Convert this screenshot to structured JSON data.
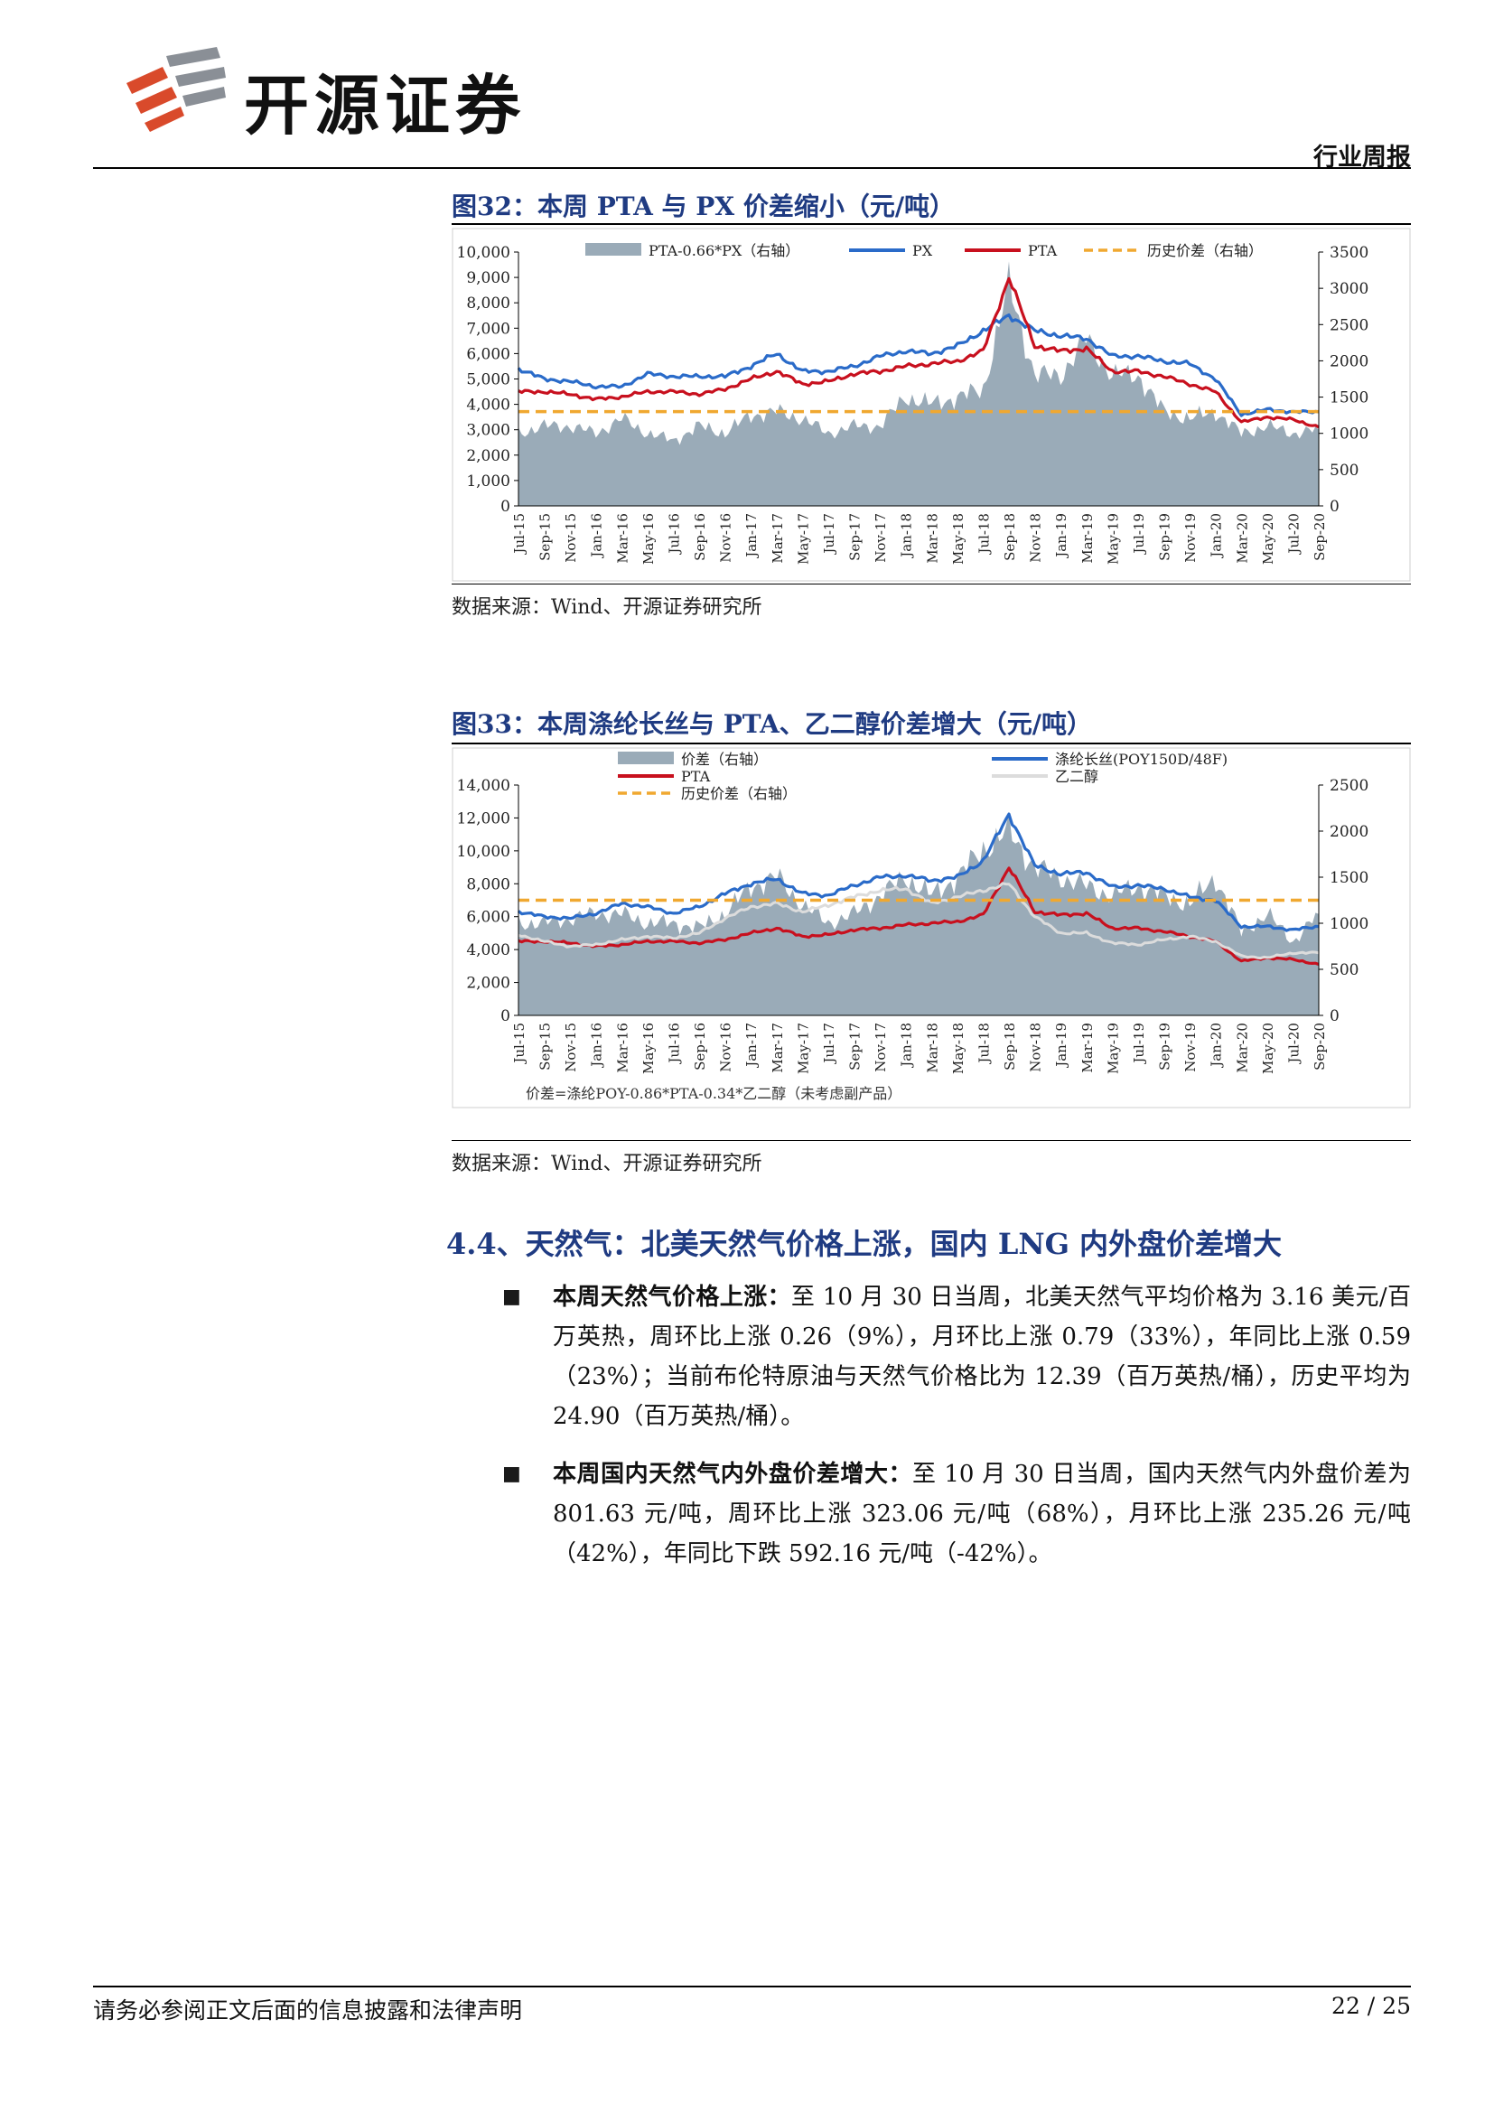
{
  "header": {
    "company_name": "开源证券",
    "report_type": "行业周报"
  },
  "figure32": {
    "title": "图32：本周 PTA 与 PX 价差缩小（元/吨）",
    "source": "数据来源：Wind、开源证券研究所",
    "colors": {
      "spread": "#9aabb8",
      "px": "#2a6bc9",
      "pta": "#c8101e",
      "hist": "#f0a830"
    },
    "chart_data": {
      "type": "area+line",
      "legend": [
        "PTA-0.66*PX（右轴）",
        "PX",
        "PTA",
        "历史价差（右轴）"
      ],
      "legend_placement": "top",
      "x_ticks": [
        "Jul-15",
        "Sep-15",
        "Nov-15",
        "Jan-16",
        "Mar-16",
        "May-16",
        "Jul-16",
        "Sep-16",
        "Nov-16",
        "Jan-17",
        "Mar-17",
        "May-17",
        "Jul-17",
        "Sep-17",
        "Nov-17",
        "Jan-18",
        "Mar-18",
        "May-18",
        "Jul-18",
        "Sep-18",
        "Nov-18",
        "Jan-19",
        "Mar-19",
        "May-19",
        "Jul-19",
        "Sep-19",
        "Nov-19",
        "Jan-20",
        "Mar-20",
        "May-20",
        "Jul-20",
        "Sep-20"
      ],
      "y_left": {
        "ticks": [
          "10,000",
          "9,000",
          "8,000",
          "7,000",
          "6,000",
          "5,000",
          "4,000",
          "3,000",
          "2,000",
          "1,000",
          "0"
        ],
        "range": [
          0,
          10000
        ]
      },
      "y_right": {
        "ticks": [
          "3500",
          "3000",
          "2500",
          "2000",
          "1500",
          "1000",
          "500",
          "0"
        ],
        "range": [
          0,
          3500
        ]
      },
      "series": [
        {
          "name": "PX",
          "axis": "left",
          "values": [
            5400,
            5000,
            4900,
            4700,
            4700,
            5200,
            5100,
            5100,
            5100,
            5500,
            6000,
            5300,
            5300,
            5500,
            5900,
            6100,
            6000,
            6300,
            6900,
            7500,
            6900,
            6700,
            6600,
            5900,
            5900,
            5700,
            5600,
            5000,
            3600,
            3800,
            3700,
            3700
          ]
        },
        {
          "name": "PTA",
          "axis": "left",
          "values": [
            4500,
            4500,
            4400,
            4200,
            4300,
            4500,
            4500,
            4400,
            4600,
            5000,
            5300,
            4800,
            4900,
            5200,
            5300,
            5500,
            5600,
            5700,
            6100,
            9000,
            6300,
            6100,
            6200,
            5300,
            5300,
            5100,
            4800,
            4500,
            3300,
            3500,
            3400,
            3100
          ]
        },
        {
          "name": "PTA-0.66*PX（右轴）",
          "axis": "right",
          "values": [
            1000,
            1100,
            1100,
            1000,
            1200,
            1000,
            900,
            1100,
            1000,
            1250,
            1300,
            1200,
            1000,
            1100,
            1100,
            1500,
            1400,
            1500,
            1600,
            3050,
            1800,
            1800,
            2300,
            1800,
            1800,
            1300,
            1200,
            1300,
            1000,
            1100,
            1000,
            1050
          ]
        },
        {
          "name": "历史价差（右轴）",
          "axis": "right",
          "values": [
            1300,
            1300
          ]
        }
      ]
    }
  },
  "figure33": {
    "title": "图33：本周涤纶长丝与 PTA、乙二醇价差增大（元/吨）",
    "note": "价差=涤纶POY-0.86*PTA-0.34*乙二醇（未考虑副产品）",
    "source": "数据来源：Wind、开源证券研究所",
    "colors": {
      "spread": "#9aabb8",
      "poy": "#2a6bc9",
      "pta": "#c8101e",
      "meg": "#dcdcdc",
      "hist": "#f0a830"
    },
    "chart_data": {
      "type": "area+line",
      "legend": [
        "价差（右轴）",
        "涤纶长丝(POY150D/48F)",
        "PTA",
        "乙二醇",
        "历史价差（右轴）"
      ],
      "legend_placement": "top",
      "x_ticks": [
        "Jul-15",
        "Sep-15",
        "Nov-15",
        "Jan-16",
        "Mar-16",
        "May-16",
        "Jul-16",
        "Sep-16",
        "Nov-16",
        "Jan-17",
        "Mar-17",
        "May-17",
        "Jul-17",
        "Sep-17",
        "Nov-17",
        "Jan-18",
        "Mar-18",
        "May-18",
        "Jul-18",
        "Sep-18",
        "Nov-18",
        "Jan-19",
        "Mar-19",
        "May-19",
        "Jul-19",
        "Sep-19",
        "Nov-19",
        "Jan-20",
        "Mar-20",
        "May-20",
        "Jul-20",
        "Sep-20"
      ],
      "y_left": {
        "ticks": [
          "14,000",
          "12,000",
          "10,000",
          "8,000",
          "6,000",
          "4,000",
          "2,000",
          "0"
        ],
        "range": [
          0,
          14000
        ]
      },
      "y_right": {
        "ticks": [
          "2500",
          "2000",
          "1500",
          "1000",
          "500",
          "0"
        ],
        "range": [
          0,
          2500
        ]
      },
      "series": [
        {
          "name": "涤纶长丝(POY150D/48F)",
          "axis": "left",
          "values": [
            6300,
            6000,
            5900,
            6200,
            6800,
            6600,
            6200,
            6600,
            7400,
            8000,
            8300,
            7400,
            7300,
            7900,
            8400,
            8500,
            8200,
            8400,
            9400,
            12200,
            9100,
            8600,
            8700,
            7800,
            7900,
            7700,
            7200,
            7000,
            5400,
            5400,
            5200,
            5400
          ]
        },
        {
          "name": "PTA",
          "axis": "left",
          "values": [
            4500,
            4500,
            4400,
            4200,
            4300,
            4500,
            4500,
            4400,
            4600,
            5000,
            5300,
            4800,
            4900,
            5200,
            5300,
            5500,
            5600,
            5700,
            6100,
            9000,
            6300,
            6100,
            6200,
            5300,
            5300,
            5100,
            4800,
            4500,
            3300,
            3500,
            3400,
            3100
          ]
        },
        {
          "name": "乙二醇",
          "axis": "left",
          "values": [
            4900,
            4500,
            4200,
            4300,
            4600,
            4800,
            4700,
            5000,
            5900,
            6600,
            6800,
            6300,
            6700,
            7200,
            7600,
            7700,
            6800,
            7200,
            7600,
            8000,
            6000,
            5000,
            5000,
            4400,
            4300,
            4600,
            4800,
            4500,
            3600,
            3500,
            3800,
            3800
          ]
        },
        {
          "name": "价差（右轴）",
          "axis": "right",
          "values": [
            1000,
            1000,
            1050,
            1100,
            1100,
            1000,
            1000,
            950,
            1100,
            1400,
            1500,
            1200,
            1000,
            1100,
            1300,
            1500,
            1300,
            1500,
            1800,
            2000,
            1600,
            1500,
            1400,
            1300,
            1400,
            1300,
            1200,
            1500,
            900,
            1100,
            800,
            1100
          ]
        },
        {
          "name": "历史价差（右轴）",
          "axis": "right",
          "values": [
            1250,
            1250
          ]
        }
      ]
    }
  },
  "section": {
    "heading": "4.4、天然气：北美天然气价格上涨，国内 LNG 内外盘价差增大",
    "bullets": [
      {
        "lead": "本周天然气价格上涨：",
        "text": "至 10 月 30 日当周，北美天然气平均价格为 3.16 美元/百万英热，周环比上涨 0.26（9%），月环比上涨 0.79（33%），年同比上涨 0.59（23%）；当前布伦特原油与天然气价格比为 12.39（百万英热/桶），历史平均为 24.90（百万英热/桶）。"
      },
      {
        "lead": "本周国内天然气内外盘价差增大：",
        "text": "至 10 月 30 日当周，国内天然气内外盘价差为 801.63 元/吨，周环比上涨 323.06 元/吨（68%），月环比上涨 235.26 元/吨（42%），年同比下跌 592.16 元/吨（-42%）。"
      }
    ]
  },
  "footer": {
    "disclaimer": "请务必参阅正文后面的信息披露和法律声明",
    "page": "22 / 25"
  }
}
